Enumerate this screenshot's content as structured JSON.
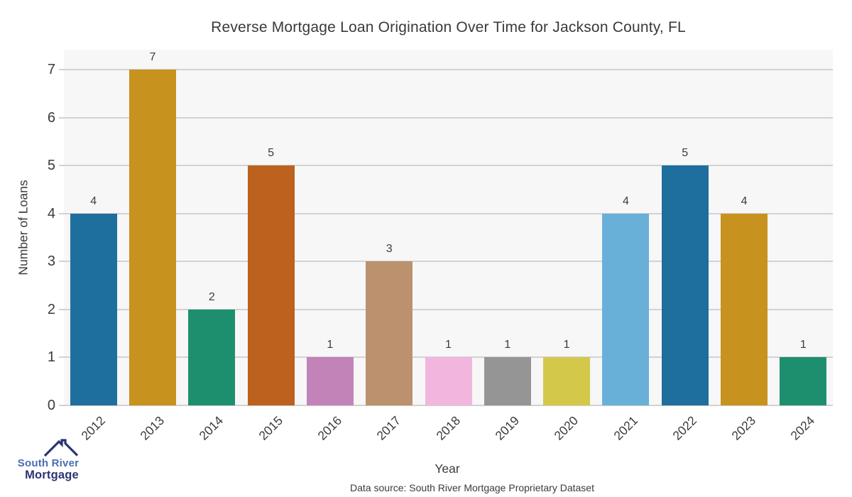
{
  "title": "Reverse Mortgage Loan Origination Over Time for Jackson County, FL",
  "source_note": "Data source: South River Mortgage Proprietary Dataset",
  "logo": {
    "line1": "South River",
    "line2": "Mortgage",
    "line1_color": "#4a6db4",
    "line2_color": "#2b3472",
    "icon_color": "#2b3472"
  },
  "chart_data": {
    "type": "bar",
    "title": "Reverse Mortgage Loan Origination Over Time for Jackson County, FL",
    "xlabel": "Year",
    "ylabel": "Number of Loans",
    "categories": [
      "2012",
      "2013",
      "2014",
      "2015",
      "2016",
      "2017",
      "2018",
      "2019",
      "2020",
      "2021",
      "2022",
      "2023",
      "2024"
    ],
    "values": [
      4,
      7,
      2,
      5,
      1,
      3,
      1,
      1,
      1,
      4,
      5,
      4,
      1
    ],
    "bar_colors": [
      "#1f6f9e",
      "#c8921f",
      "#1e8f6e",
      "#bc611e",
      "#c183b8",
      "#bc916e",
      "#f2b6de",
      "#959595",
      "#d3c84a",
      "#69b0d8",
      "#1f6f9e",
      "#c8921f",
      "#1e8f6e"
    ],
    "ylim": [
      0,
      7
    ],
    "yticks": [
      0,
      1,
      2,
      3,
      4,
      5,
      6,
      7
    ],
    "grid": "horizontal",
    "legend": "none",
    "plot_bg_color": "#f7f7f7",
    "gridline_color": "#d2d2d2",
    "text_color": "#3b3b3b"
  }
}
